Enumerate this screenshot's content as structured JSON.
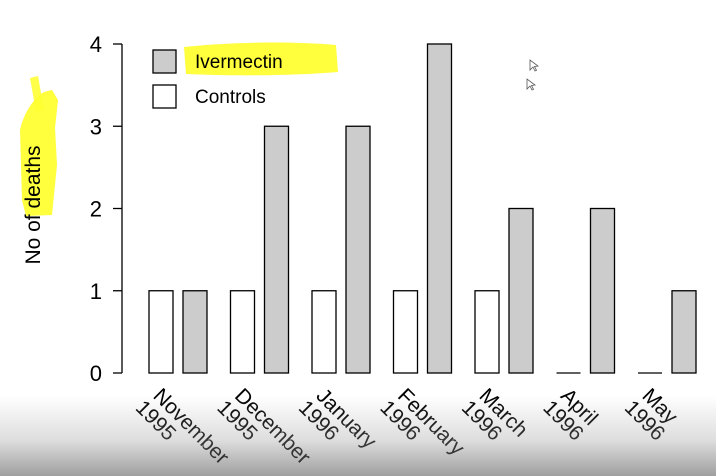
{
  "chart_data": {
    "type": "bar",
    "categories": [
      [
        "November",
        "1995"
      ],
      [
        "December",
        "1995"
      ],
      [
        "January",
        "1996"
      ],
      [
        "February",
        "1996"
      ],
      [
        "March",
        "1996"
      ],
      [
        "April",
        "1996"
      ],
      [
        "May",
        "1996"
      ]
    ],
    "series": [
      {
        "name": "Controls",
        "values": [
          1,
          1,
          1,
          1,
          1,
          0,
          0
        ],
        "color": "#ffffff"
      },
      {
        "name": "Ivermectin",
        "values": [
          1,
          3,
          3,
          4,
          2,
          2,
          1
        ],
        "color": "#cccccc"
      }
    ],
    "ylabel_parts": [
      "No of ",
      "deaths"
    ],
    "ylim": [
      0,
      4
    ],
    "yticks": [
      0,
      1,
      2,
      3,
      4
    ],
    "legend_placement": "top-left",
    "legend_order": [
      "Ivermectin",
      "Controls"
    ],
    "highlight_color": "#ffff33",
    "grid": false
  }
}
